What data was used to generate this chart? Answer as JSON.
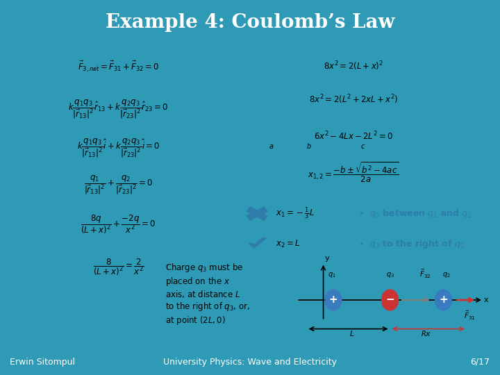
{
  "title": "Example 4: Coulomb’s Law",
  "title_color": "#ffffff",
  "title_bg_color": "#2e9ab5",
  "slide_bg_color": "#2e9ab5",
  "content_bg_color": "#f0f0f0",
  "footer_left": "Erwin Sitompul",
  "footer_center": "University Physics: Wave and Electricity",
  "footer_right": "6/17",
  "footer_bg": "#2e9ab5",
  "footer_text_color": "#ffffff",
  "left_equations": [
    "$\\vec{F}_{3,net} = \\vec{F}_{31} + \\vec{F}_{32} = 0$",
    "$k\\dfrac{q_1 q_3}{|\\vec{r}_{13}|^2}\\hat{r}_{13} + k\\dfrac{q_2 q_3}{|\\vec{r}_{23}|^2}\\hat{r}_{23} = 0$",
    "$k\\dfrac{q_1 q_3}{|\\vec{r}_{13}|^2}\\hat{i} + k\\dfrac{q_2 q_3}{|\\vec{r}_{23}|^2}\\hat{i} = 0$",
    "$\\dfrac{q_1}{|\\vec{r}_{13}|^2} + \\dfrac{q_2}{|\\vec{r}_{23}|^2} = 0$",
    "$\\dfrac{8q}{(L+x)^2} + \\dfrac{-2q}{x^2} = 0$",
    "$\\dfrac{8}{(L+x)^2} = \\dfrac{2}{x^2}$"
  ],
  "right_equations": [
    "$8x^2 = 2(L+x)^2$",
    "$8x^2 = 2(L^2 + 2xL + x^2)$",
    "$6x^2 - 4Lx - 2L^2 = 0$",
    "$x_{1,2} = \\dfrac{-b \\pm \\sqrt{b^2 - 4ac}}{2a}$"
  ],
  "answer1_cross": true,
  "answer2_check": true,
  "answer1_text": "$x_1 = -\\dfrac{1}{3}L$",
  "answer1_label": "$\\bullet$ $q_3$ between $q_1$ and $q_2$",
  "answer2_text": "$x_2 = L$",
  "answer2_label": "$\\bullet$ $q_3$ to the right of $q_2$",
  "bottom_text": "Charge $q_3$ must be\nplaced on the $x$\naxis, at distance $L$\nto the right of $q_3$, or,\nat point $(2L, 0)$",
  "cross_color": "#2e7caa",
  "check_color": "#2e7caa",
  "answer_label_color": "#2e7caa"
}
